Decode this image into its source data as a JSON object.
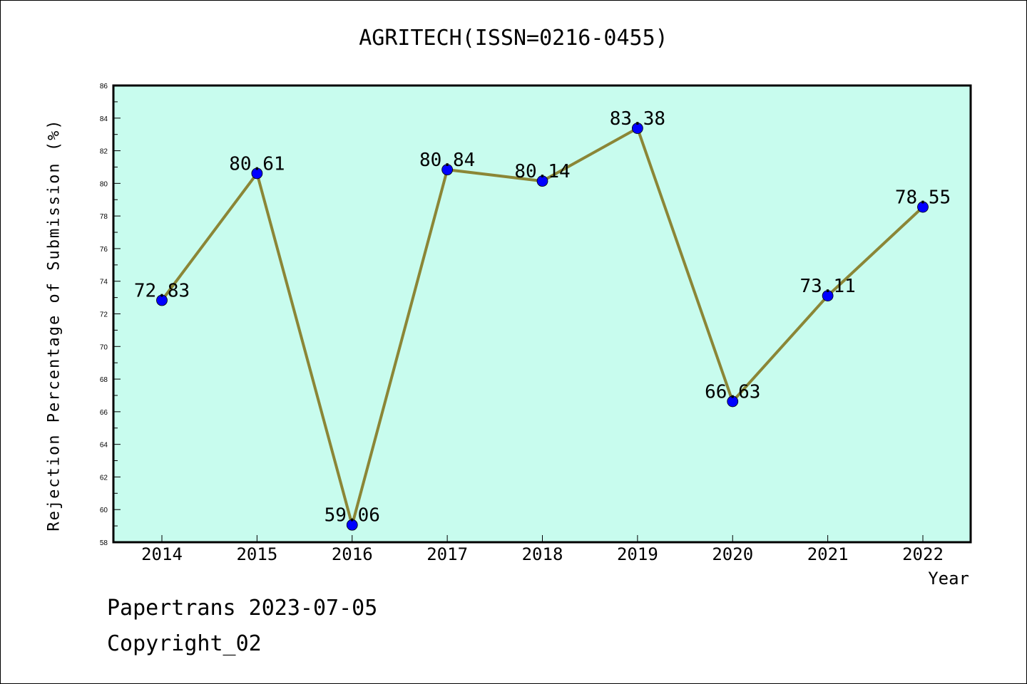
{
  "title": "AGRITECH(ISSN=0216-0455)",
  "footer": {
    "date_line": "Papertrans 2023-07-05",
    "copyright": "Copyright_02"
  },
  "chart_data": {
    "type": "line",
    "x": [
      "2014",
      "2015",
      "2016",
      "2017",
      "2018",
      "2019",
      "2020",
      "2021",
      "2022"
    ],
    "series": [
      {
        "values": [
          72.83,
          80.61,
          59.06,
          80.84,
          80.14,
          83.38,
          66.63,
          73.11,
          78.55
        ]
      }
    ],
    "data_labels": [
      "72.83",
      "80.61",
      "59.06",
      "80.84",
      "80.14",
      "83.38",
      "66.63",
      "73.11",
      "78.55"
    ],
    "xlabel": "Year",
    "ylabel": "Rejection Percentage of Submission (%)",
    "ylim": [
      58,
      86
    ],
    "yticks": [
      "58",
      "60",
      "62",
      "64",
      "66",
      "68",
      "70",
      "72",
      "74",
      "76",
      "78",
      "80",
      "82",
      "84",
      "86"
    ],
    "grid": false,
    "colors": {
      "plot_background": "#c8fcee",
      "line": "#8b8636",
      "marker": "#0000ff"
    }
  }
}
